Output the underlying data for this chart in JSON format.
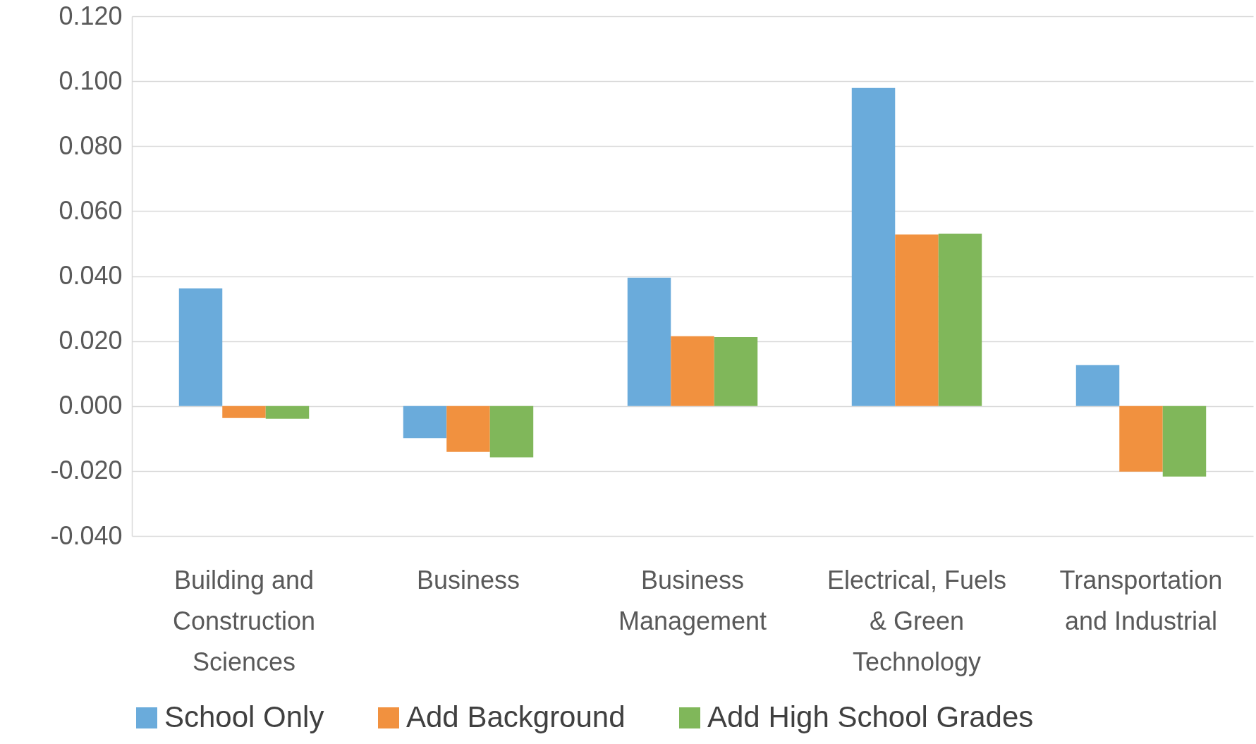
{
  "chart_data": {
    "type": "bar",
    "categories": [
      "Building and Construction Sciences",
      "Business",
      "Business Management",
      "Electrical, Fuels & Green Technology",
      "Transportation and Industrial"
    ],
    "series": [
      {
        "name": "School Only",
        "color": "#6aabdb",
        "values": [
          0.0362,
          -0.0099,
          0.0395,
          0.0979,
          0.0126
        ]
      },
      {
        "name": "Add Background",
        "color": "#f1913f",
        "values": [
          -0.0037,
          -0.0141,
          0.0215,
          0.0528,
          -0.0202
        ]
      },
      {
        "name": "Add High School Grades",
        "color": "#80b75a",
        "values": [
          -0.0039,
          -0.0158,
          0.0212,
          0.053,
          -0.0217
        ]
      }
    ],
    "ylim": [
      -0.04,
      0.12
    ],
    "yticks": [
      {
        "value": -0.04,
        "label": "-0.040"
      },
      {
        "value": -0.02,
        "label": "-0.020"
      },
      {
        "value": 0,
        "label": "0.000"
      },
      {
        "value": 0.02,
        "label": "0.020"
      },
      {
        "value": 0.04,
        "label": "0.040"
      },
      {
        "value": 0.06,
        "label": "0.060"
      },
      {
        "value": 0.08,
        "label": "0.080"
      },
      {
        "value": 0.1,
        "label": "0.100"
      },
      {
        "value": 0.12,
        "label": "0.120"
      }
    ],
    "grid": "y",
    "legend": "bottom"
  }
}
